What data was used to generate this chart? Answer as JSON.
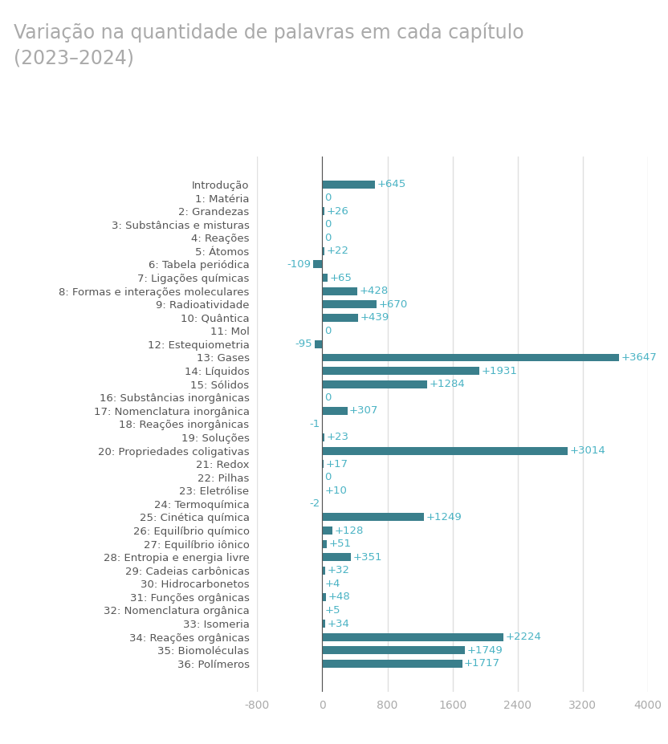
{
  "title": "Variação na quantidade de palavras em cada capítulo\n(2023–2024)",
  "categories": [
    "Introdução",
    "1: Matéria",
    "2: Grandezas",
    "3: Substâncias e misturas",
    "4: Reações",
    "5: Átomos",
    "6: Tabela periódica",
    "7: Ligações químicas",
    "8: Formas e interações moleculares",
    "9: Radioatividade",
    "10: Quântica",
    "11: Mol",
    "12: Estequiometria",
    "13: Gases",
    "14: Líquidos",
    "15: Sólidos",
    "16: Substâncias inorgânicas",
    "17: Nomenclatura inorgânica",
    "18: Reações inorgânicas",
    "19: Soluções",
    "20: Propriedades coligativas",
    "21: Redox",
    "22: Pilhas",
    "23: Eletrólise",
    "24: Termoquímica",
    "25: Cinética química",
    "26: Equilíbrio químico",
    "27: Equilíbrio iônico",
    "28: Entropia e energia livre",
    "29: Cadeias carbônicas",
    "30: Hidrocarbonetos",
    "31: Funções orgânicas",
    "32: Nomenclatura orgânica",
    "33: Isomeria",
    "34: Reações orgânicas",
    "35: Biomoléculas",
    "36: Polímeros"
  ],
  "values": [
    645,
    0,
    26,
    0,
    0,
    22,
    -109,
    65,
    428,
    670,
    439,
    0,
    -95,
    3647,
    1931,
    1284,
    0,
    307,
    -1,
    23,
    3014,
    17,
    0,
    10,
    -2,
    1249,
    128,
    51,
    351,
    32,
    4,
    48,
    5,
    34,
    2224,
    1749,
    1717
  ],
  "bar_color": "#3a7f8c",
  "label_color": "#4ab3c4",
  "background_color": "#ffffff",
  "title_color": "#aaaaaa",
  "tick_color": "#aaaaaa",
  "grid_color": "#e0e0e0",
  "ylabel_color": "#555555",
  "xlim": [
    -800,
    4000
  ],
  "xticks": [
    -800,
    0,
    800,
    1600,
    2400,
    3200,
    4000
  ],
  "title_fontsize": 17,
  "label_fontsize": 9.5,
  "tick_fontsize": 10
}
